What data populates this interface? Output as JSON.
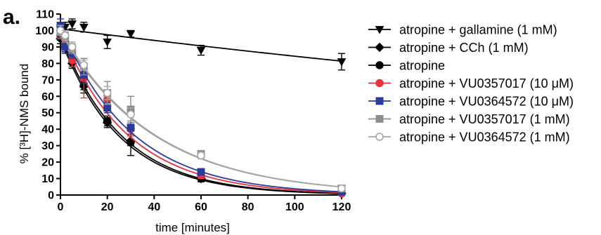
{
  "panel_label": "a.",
  "chart_data": {
    "type": "scatter",
    "title": "",
    "xlabel": "time [minutes]",
    "ylabel": "% [³H]-NMS bound",
    "xlim": [
      0,
      120
    ],
    "ylim": [
      0,
      110
    ],
    "xticks": [
      0,
      20,
      40,
      60,
      80,
      100,
      120
    ],
    "yticks": [
      0,
      10,
      20,
      30,
      40,
      50,
      60,
      70,
      80,
      90,
      100,
      110
    ],
    "grid": false,
    "legend_position": "right",
    "series": [
      {
        "name": "atropine + gallamine (1 mM)",
        "color": "#000000",
        "marker": "triangle-down",
        "x": [
          0,
          2,
          5,
          10,
          20,
          30,
          60,
          120
        ],
        "y": [
          101,
          102,
          104,
          102,
          93,
          98,
          88,
          81
        ],
        "err": [
          3,
          3,
          3,
          3,
          4,
          2,
          3,
          5
        ],
        "fit_k": 0.0018,
        "fit_plateau": 0
      },
      {
        "name": "atropine + CCh (1 mM)",
        "color": "#000000",
        "marker": "diamond",
        "x": [
          0,
          2,
          5,
          10,
          20,
          30,
          60,
          120
        ],
        "y": [
          95,
          90,
          80,
          66,
          44,
          33,
          10,
          1
        ],
        "err": [
          3,
          3,
          3,
          4,
          3,
          3,
          2,
          1
        ],
        "fit_k": 0.039,
        "fit_plateau": 0
      },
      {
        "name": "atropine",
        "color": "#000000",
        "marker": "circle",
        "x": [
          0,
          2,
          5,
          10,
          20,
          30,
          60,
          120
        ],
        "y": [
          97,
          93,
          82,
          67,
          45,
          32,
          10,
          1
        ],
        "err": [
          3,
          4,
          4,
          3,
          3,
          8,
          2,
          1
        ],
        "fit_k": 0.038,
        "fit_plateau": 0
      },
      {
        "name": "atropine + VU0357017 (10 μM)",
        "color": "#e8313a",
        "marker": "circle",
        "x": [
          0,
          2,
          5,
          10,
          20,
          30,
          60,
          120
        ],
        "y": [
          100,
          92,
          82,
          71,
          58,
          40,
          12,
          1
        ],
        "err": [
          4,
          4,
          4,
          12,
          4,
          4,
          2,
          1
        ],
        "fit_k": 0.035,
        "fit_plateau": 0
      },
      {
        "name": "atropine + VU0364572 (10 μM)",
        "color": "#2b3a9a",
        "marker": "square",
        "x": [
          0,
          2,
          5,
          10,
          20,
          30,
          60,
          120
        ],
        "y": [
          103,
          90,
          86,
          73,
          53,
          41,
          14,
          2
        ],
        "err": [
          4,
          4,
          3,
          5,
          3,
          4,
          2,
          1
        ],
        "fit_k": 0.033,
        "fit_plateau": 0
      },
      {
        "name": "atropine + VU0357017 (1 mM)",
        "color": "#8c8c8c",
        "marker": "square",
        "x": [
          0,
          2,
          5,
          10,
          20,
          30,
          60,
          120
        ],
        "y": [
          99,
          96,
          89,
          78,
          62,
          52,
          25,
          4
        ],
        "err": [
          4,
          3,
          3,
          5,
          7,
          8,
          2,
          1
        ],
        "fit_k": 0.025,
        "fit_plateau": 0
      },
      {
        "name": "atropine + VU0364572 (1 mM)",
        "color": "#a6a6a6",
        "marker": "circle-open",
        "x": [
          0,
          2,
          5,
          10,
          20,
          30,
          60,
          120
        ],
        "y": [
          100,
          97,
          90,
          79,
          62,
          49,
          24,
          4
        ],
        "err": [
          3,
          3,
          3,
          3,
          4,
          4,
          2,
          1
        ],
        "fit_k": 0.025,
        "fit_plateau": 0
      }
    ]
  }
}
